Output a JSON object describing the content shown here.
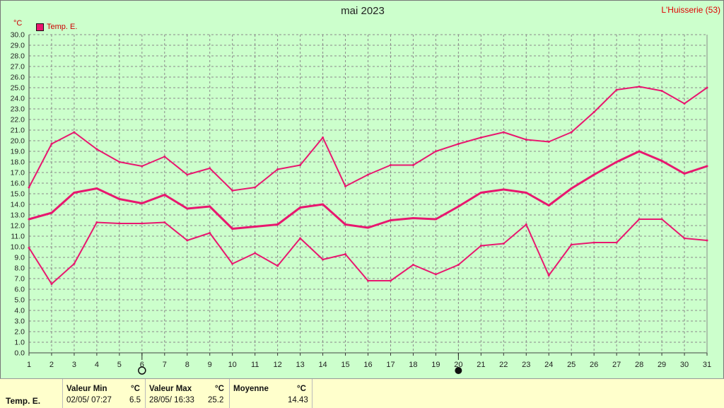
{
  "header": {
    "title": "mai 2023",
    "station": "L'Huisserie (53)",
    "unit": "°C"
  },
  "legend": {
    "label": "Temp. E.",
    "color": "#e8176f"
  },
  "chart_data": {
    "type": "line",
    "title": "mai 2023",
    "ylabel": "°C",
    "xlim": [
      1,
      31
    ],
    "ylim": [
      0,
      30
    ],
    "y_tick_step": 1,
    "grid": true,
    "legend_position": "top-left",
    "x": [
      1,
      2,
      3,
      4,
      5,
      6,
      7,
      8,
      9,
      10,
      11,
      12,
      13,
      14,
      15,
      16,
      17,
      18,
      19,
      20,
      21,
      22,
      23,
      24,
      25,
      26,
      27,
      28,
      29,
      30,
      31
    ],
    "series": [
      {
        "name": "",
        "role": "max",
        "color": "#e8176f",
        "values": [
          15.6,
          19.7,
          20.8,
          19.2,
          18.0,
          17.6,
          18.5,
          16.8,
          17.4,
          15.3,
          15.6,
          17.3,
          17.7,
          20.3,
          15.7,
          16.8,
          17.7,
          17.7,
          19.0,
          19.7,
          20.3,
          20.8,
          20.1,
          19.9,
          20.8,
          22.7,
          24.8,
          25.1,
          24.7,
          23.5,
          25.0
        ]
      },
      {
        "name": "",
        "role": "mean",
        "color": "#e8176f",
        "values": [
          12.6,
          13.2,
          15.1,
          15.5,
          14.5,
          14.1,
          14.9,
          13.6,
          13.8,
          11.7,
          11.9,
          12.1,
          13.7,
          14.0,
          12.1,
          11.8,
          12.5,
          12.7,
          12.6,
          13.8,
          15.1,
          15.4,
          15.1,
          13.9,
          15.5,
          16.8,
          18.0,
          19.0,
          18.1,
          16.9,
          17.6
        ]
      },
      {
        "name": "",
        "role": "min",
        "color": "#e8176f",
        "values": [
          9.9,
          6.5,
          8.4,
          12.3,
          12.2,
          12.2,
          12.3,
          10.6,
          11.3,
          8.4,
          9.4,
          8.2,
          10.8,
          8.8,
          9.3,
          6.8,
          6.8,
          8.3,
          7.4,
          8.3,
          10.1,
          10.3,
          12.1,
          7.3,
          10.2,
          10.4,
          10.4,
          12.6,
          12.6,
          10.8,
          10.6
        ]
      }
    ],
    "moon_phases": [
      {
        "day": 6,
        "phase": "full"
      },
      {
        "day": 20,
        "phase": "new"
      }
    ]
  },
  "footer": {
    "series_label": "Temp. E.",
    "min_header": "Valeur Min",
    "min_unit": "°C",
    "min_datetime": "02/05/  07:27",
    "min_value": "6.5",
    "max_header": "Valeur Max",
    "max_unit": "°C",
    "max_datetime": "28/05/  16:33",
    "max_value": "25.2",
    "mean_header": "Moyenne",
    "mean_unit": "°C",
    "mean_value": "14.43"
  }
}
